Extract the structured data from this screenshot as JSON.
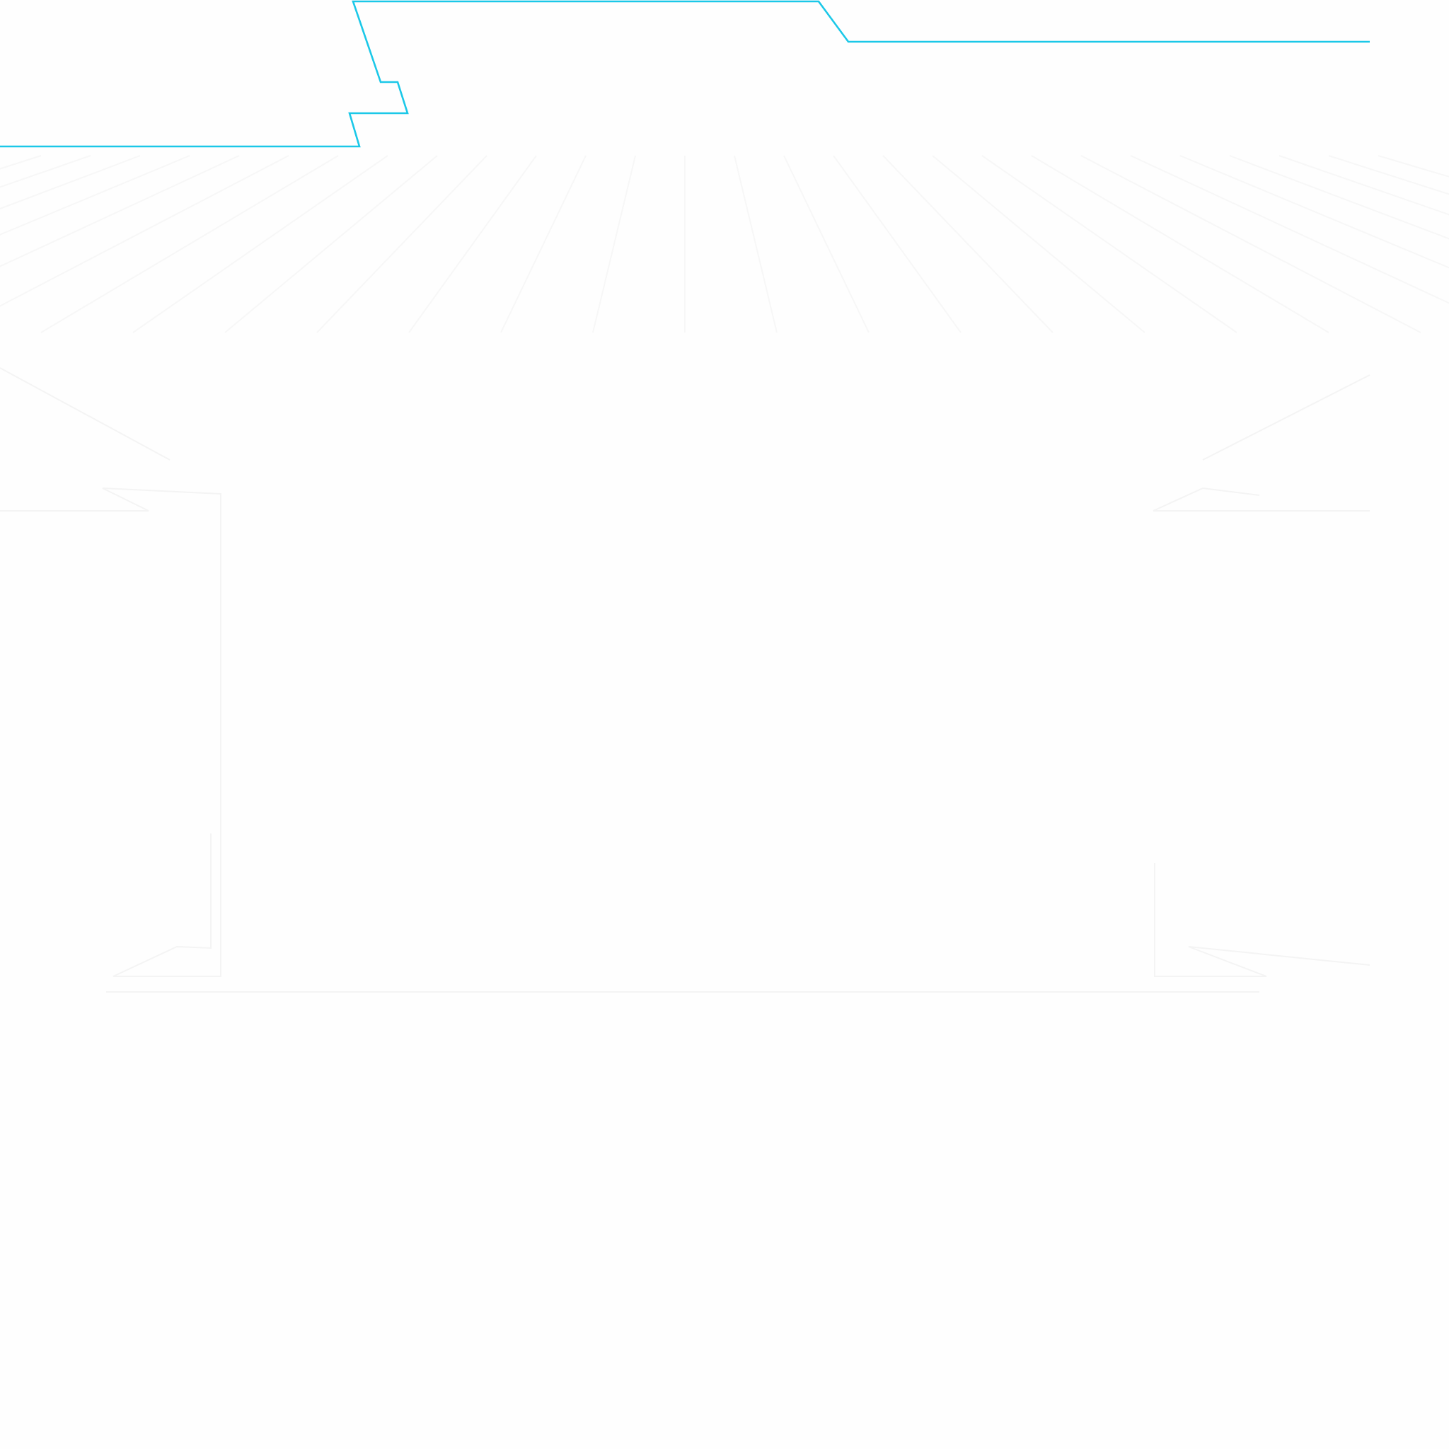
{
  "colors": {
    "background": "#fefefe",
    "accent_line": "#1bc8e8",
    "faint_pattern": "#f7f7f7",
    "faint_frame": "#f4f4f4"
  }
}
